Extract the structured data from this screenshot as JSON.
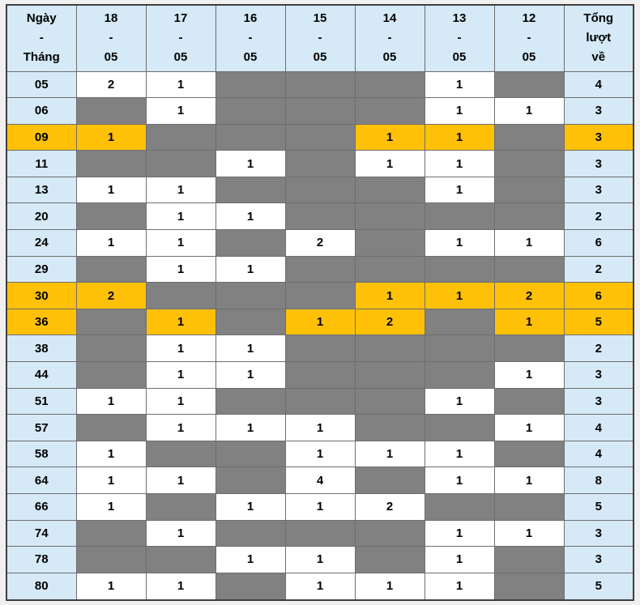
{
  "page": {
    "background": "#f0f0f0",
    "description_labels": {
      "day_month": "Ngày - Tháng",
      "total": "Tổng lượt về"
    }
  },
  "colors": {
    "header_bg": "#d5e9f6",
    "row_label_bg": "#d5e9f6",
    "empty_cell": "#818181",
    "highlight_row": "#ffc107",
    "inner_border": "#6e6e6e",
    "outer_border": "#3f3f3f",
    "header_label_text": "#182d82",
    "date_link_text": "#1a53c9",
    "value_text": "#000000",
    "red_value_text": "#f20f0f"
  },
  "table": {
    "header": {
      "corner": "Ngày\n-\nTháng",
      "dates": [
        "18\n-\n05",
        "17\n-\n05",
        "16\n-\n05",
        "15\n-\n05",
        "14\n-\n05",
        "13\n-\n05",
        "12\n-\n05"
      ],
      "total": "Tổng\nlượt\nvề"
    },
    "rows": [
      {
        "number": "05",
        "cells": [
          "2",
          "1",
          "",
          "",
          "",
          "1",
          ""
        ],
        "total": "4",
        "highlight": false,
        "red": []
      },
      {
        "number": "06",
        "cells": [
          "",
          "1",
          "",
          "",
          "",
          "1",
          "1"
        ],
        "total": "3",
        "highlight": false,
        "red": []
      },
      {
        "number": "09",
        "cells": [
          "1",
          "",
          "",
          "",
          "1",
          "1",
          ""
        ],
        "total": "3",
        "highlight": true,
        "red": [
          5
        ]
      },
      {
        "number": "11",
        "cells": [
          "",
          "",
          "1",
          "",
          "1",
          "1",
          ""
        ],
        "total": "3",
        "highlight": false,
        "red": []
      },
      {
        "number": "13",
        "cells": [
          "1",
          "1",
          "",
          "",
          "",
          "1",
          ""
        ],
        "total": "3",
        "highlight": false,
        "red": []
      },
      {
        "number": "20",
        "cells": [
          "",
          "1",
          "1",
          "",
          "",
          "",
          ""
        ],
        "total": "2",
        "highlight": false,
        "red": []
      },
      {
        "number": "24",
        "cells": [
          "1",
          "1",
          "",
          "2",
          "",
          "1",
          "1"
        ],
        "total": "6",
        "highlight": false,
        "red": []
      },
      {
        "number": "29",
        "cells": [
          "",
          "1",
          "1",
          "",
          "",
          "",
          ""
        ],
        "total": "2",
        "highlight": false,
        "red": []
      },
      {
        "number": "30",
        "cells": [
          "2",
          "",
          "",
          "",
          "1",
          "1",
          "2"
        ],
        "total": "6",
        "highlight": true,
        "red": [
          4
        ]
      },
      {
        "number": "36",
        "cells": [
          "",
          "1",
          "",
          "1",
          "2",
          "",
          "1"
        ],
        "total": "5",
        "highlight": true,
        "red": [
          1
        ]
      },
      {
        "number": "38",
        "cells": [
          "",
          "1",
          "1",
          "",
          "",
          "",
          ""
        ],
        "total": "2",
        "highlight": false,
        "red": []
      },
      {
        "number": "44",
        "cells": [
          "",
          "1",
          "1",
          "",
          "",
          "",
          "1"
        ],
        "total": "3",
        "highlight": false,
        "red": []
      },
      {
        "number": "51",
        "cells": [
          "1",
          "1",
          "",
          "",
          "",
          "1",
          ""
        ],
        "total": "3",
        "highlight": false,
        "red": []
      },
      {
        "number": "57",
        "cells": [
          "",
          "1",
          "1",
          "1",
          "",
          "",
          "1"
        ],
        "total": "4",
        "highlight": false,
        "red": []
      },
      {
        "number": "58",
        "cells": [
          "1",
          "",
          "",
          "1",
          "1",
          "1",
          ""
        ],
        "total": "4",
        "highlight": false,
        "red": []
      },
      {
        "number": "64",
        "cells": [
          "1",
          "1",
          "",
          "4",
          "",
          "1",
          "1"
        ],
        "total": "8",
        "highlight": false,
        "red": []
      },
      {
        "number": "66",
        "cells": [
          "1",
          "",
          "1",
          "1",
          "2",
          "",
          ""
        ],
        "total": "5",
        "highlight": false,
        "red": []
      },
      {
        "number": "74",
        "cells": [
          "",
          "1",
          "",
          "",
          "",
          "1",
          "1"
        ],
        "total": "3",
        "highlight": false,
        "red": []
      },
      {
        "number": "78",
        "cells": [
          "",
          "",
          "1",
          "1",
          "",
          "1",
          ""
        ],
        "total": "3",
        "highlight": false,
        "red": []
      },
      {
        "number": "80",
        "cells": [
          "1",
          "1",
          "",
          "1",
          "1",
          "1",
          ""
        ],
        "total": "5",
        "highlight": false,
        "red": []
      }
    ]
  }
}
